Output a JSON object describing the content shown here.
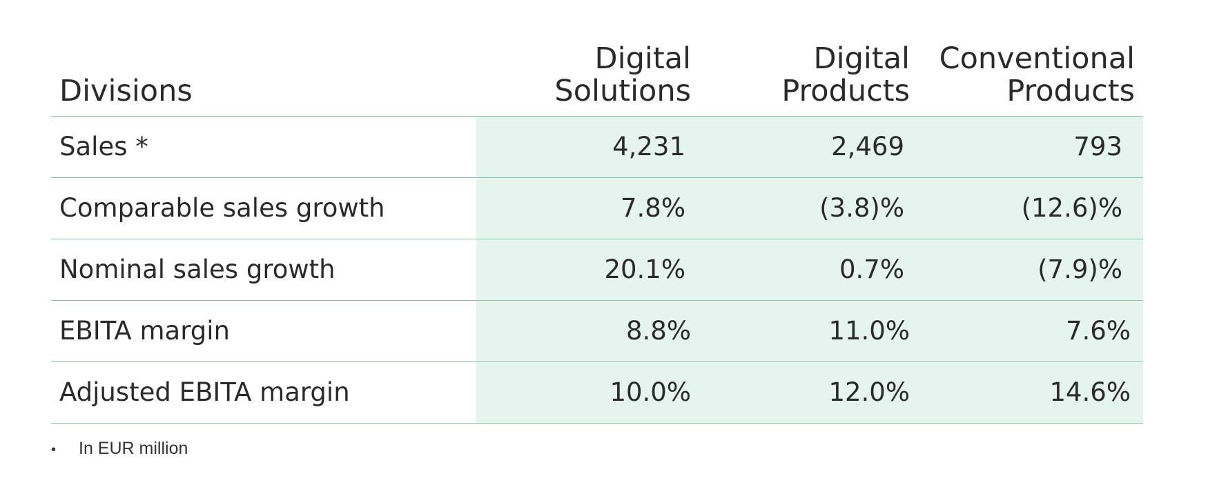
{
  "table": {
    "headers": {
      "divisions": "Divisions",
      "col1_line1": "Digital",
      "col1_line2": "Solutions",
      "col2_line1": "Digital",
      "col2_line2": "Products",
      "col3_line1": "Conventional",
      "col3_line2": "Products"
    },
    "rows": [
      {
        "label": "Sales *",
        "v1": "4,231",
        "v2": "2,469",
        "v3": "793"
      },
      {
        "label": "Comparable sales growth",
        "v1": "7.8%",
        "v2": "(3.8)%",
        "v3": "(12.6)%"
      },
      {
        "label": "Nominal sales growth",
        "v1": "20.1%",
        "v2": "0.7%",
        "v3": "(7.9)%"
      },
      {
        "label": "EBITA margin",
        "v1": "8.8%",
        "v2": "11.0%",
        "v3": "7.6%"
      },
      {
        "label": "Adjusted EBITA margin",
        "v1": "10.0%",
        "v2": "12.0%",
        "v3": "14.6%"
      }
    ]
  },
  "footnote": {
    "bullet": "•",
    "text": "In EUR million"
  },
  "colors": {
    "shade": "#e5f4ee",
    "rule": "#7fc8a0",
    "text": "#2a2a2a"
  }
}
